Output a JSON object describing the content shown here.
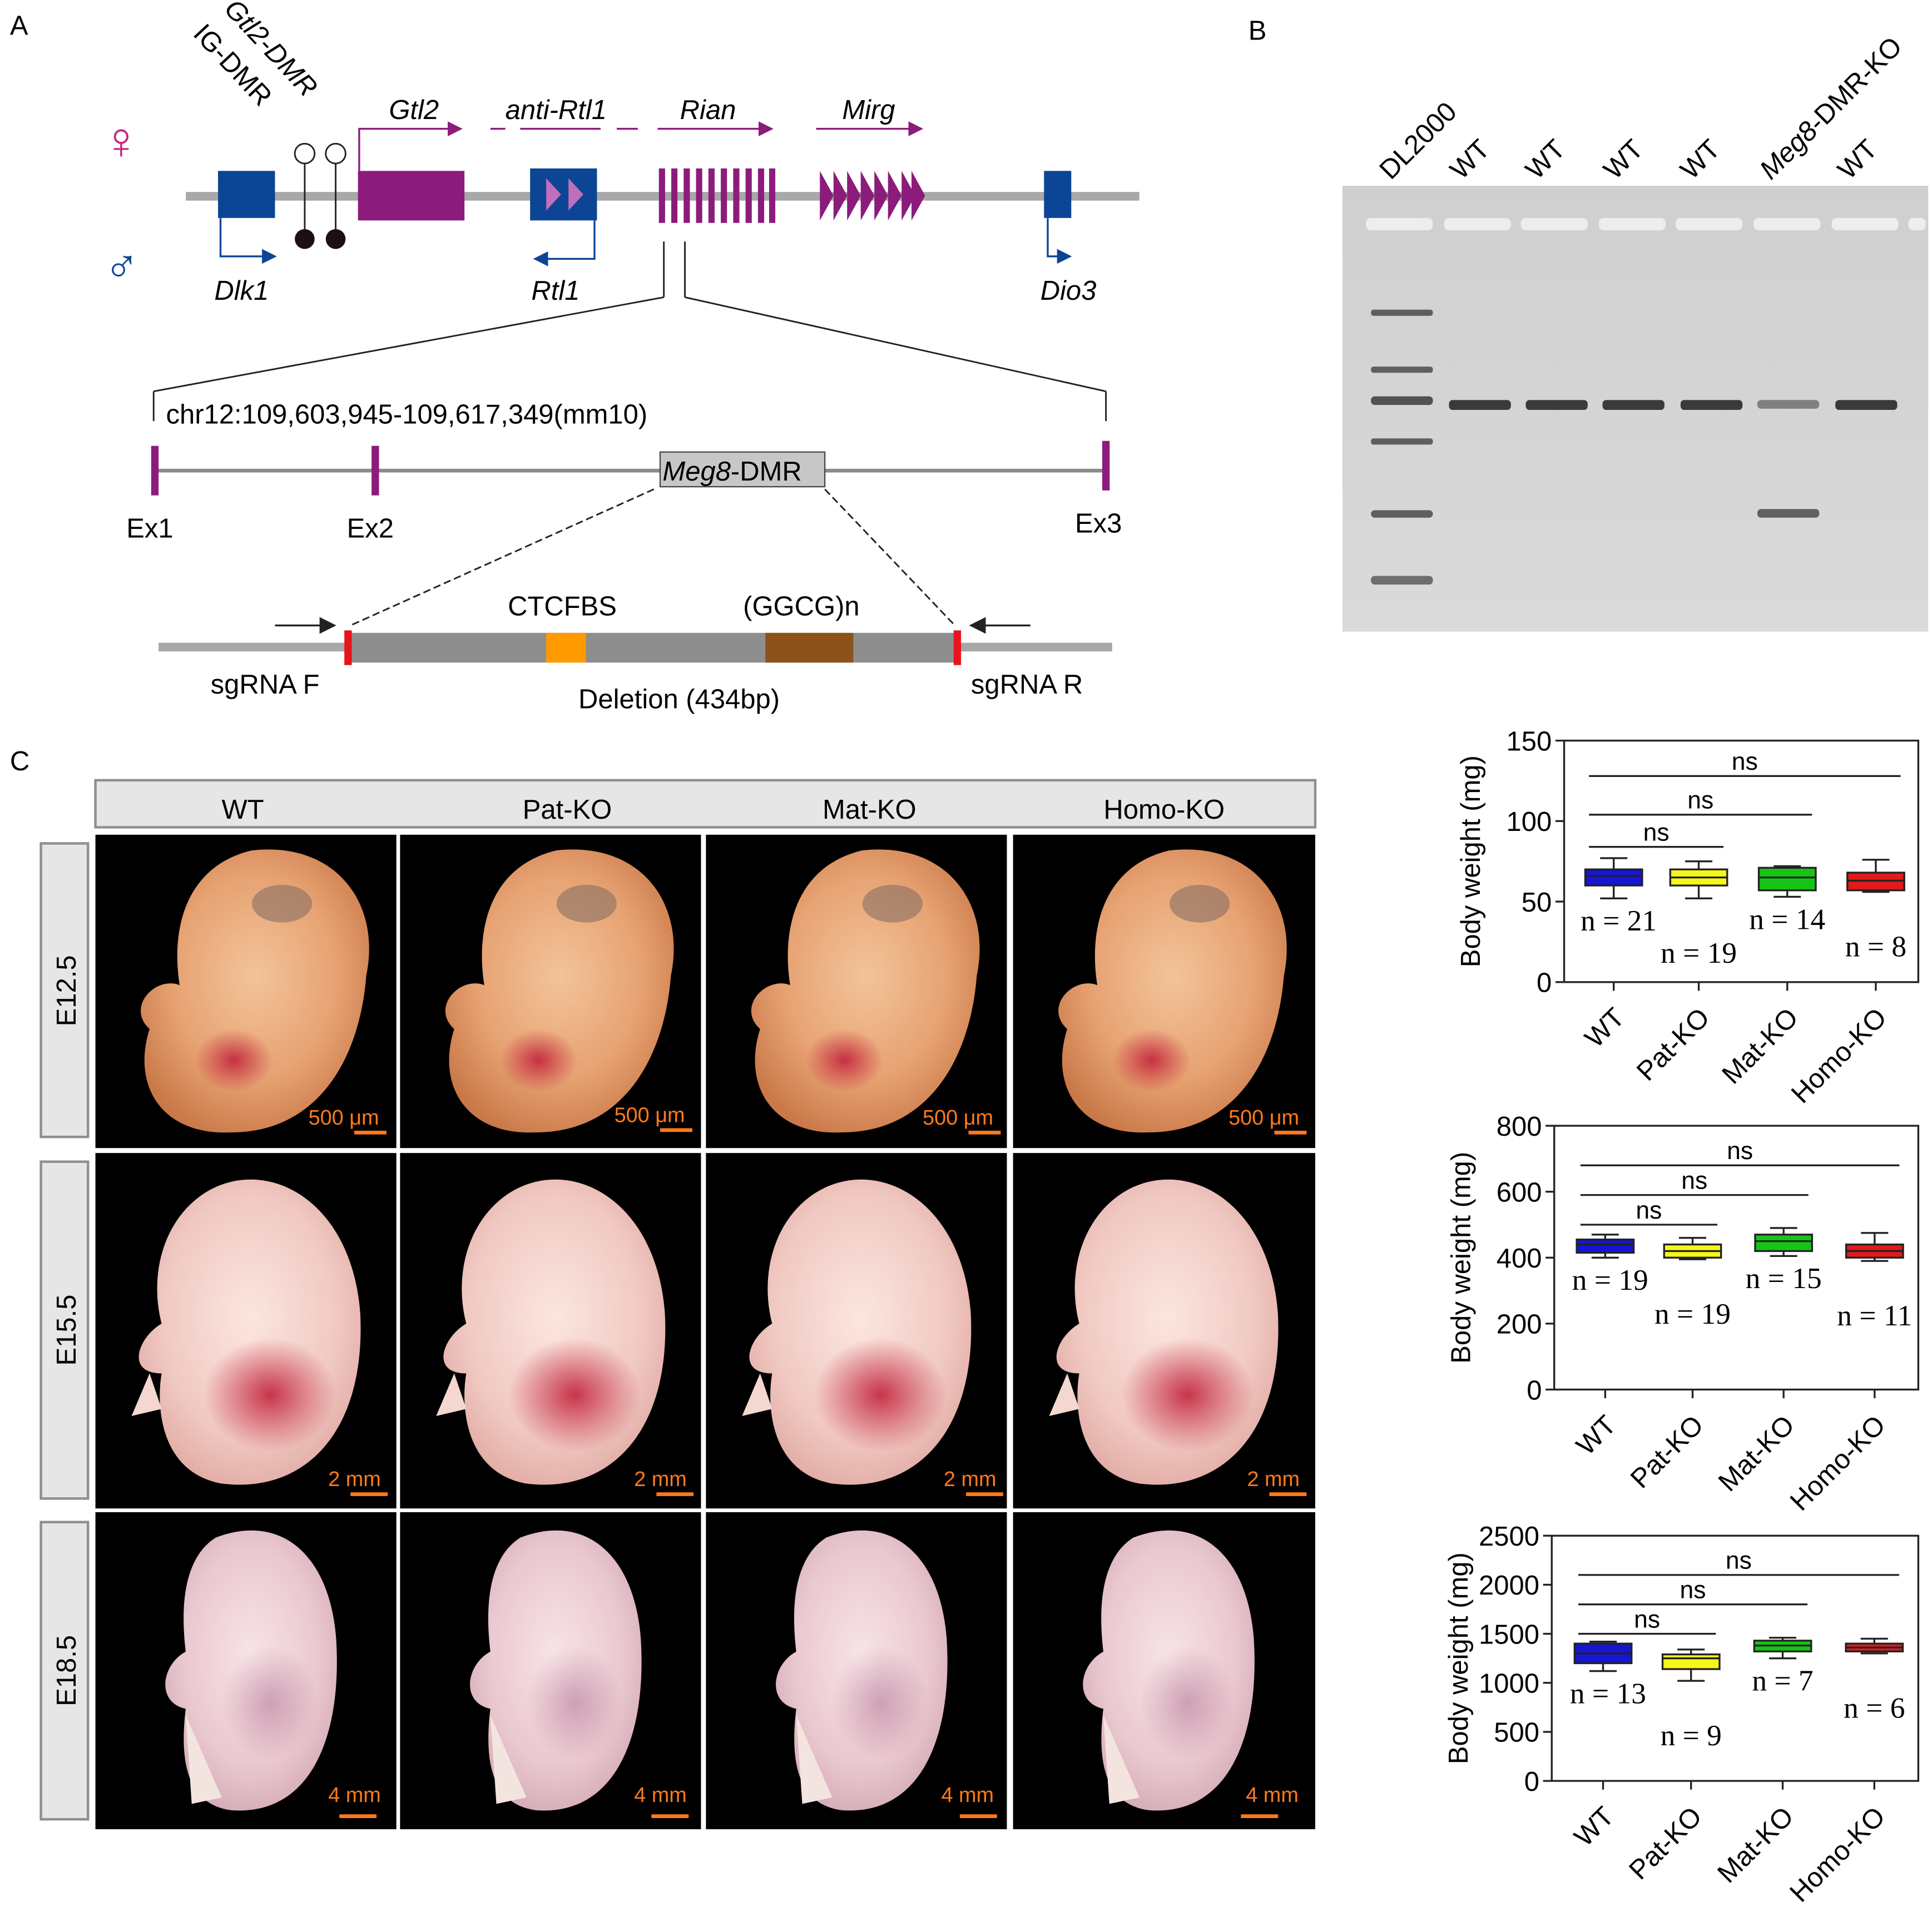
{
  "panels": {
    "A": {
      "label": "A",
      "female_symbol": "♀",
      "male_symbol": "♂",
      "dmr1": "IG-DMR",
      "dmr2": "Gtl2-DMR",
      "genes_top": [
        "Gtl2",
        "anti-Rtl1",
        "Rian",
        "Mirg"
      ],
      "genes_bottom": [
        "Dlk1",
        "Rtl1",
        "Dio3"
      ],
      "locus": "chr12:109,603,945-109,617,349(mm10)",
      "dmr_box": {
        "italic": "Meg8",
        "rest": "-DMR"
      },
      "exons": [
        "Ex1",
        "Ex2",
        "Ex3"
      ],
      "ctcf": "CTCFBS",
      "ggcg": "(GGCG)n",
      "sgrna_f": "sgRNA F",
      "sgrna_r": "sgRNA R",
      "deletion": "Deletion (434bp)",
      "colors": {
        "blue": "#0d4595",
        "purple": "#8b1c7b",
        "ctcf": "#ff9a00",
        "ggcg": "#8b531a",
        "red": "#e8141b"
      }
    },
    "B": {
      "label": "B",
      "lanes": [
        {
          "text": "DL2000",
          "italic": ""
        },
        {
          "text": "WT",
          "italic": ""
        },
        {
          "text": "WT",
          "italic": ""
        },
        {
          "text": "WT",
          "italic": ""
        },
        {
          "text": "WT",
          "italic": ""
        },
        {
          "text": "-DMR-KO",
          "italic": "Meg8"
        },
        {
          "text": "WT",
          "italic": ""
        }
      ]
    },
    "C": {
      "label": "C",
      "columns": [
        "WT",
        "Pat-KO",
        "Mat-KO",
        "Homo-KO"
      ],
      "rows": [
        {
          "stage": "E12.5",
          "scale": "500 μm"
        },
        {
          "stage": "E15.5",
          "scale": "2 mm"
        },
        {
          "stage": "E18.5",
          "scale": "4 mm"
        }
      ]
    }
  },
  "chart_data": [
    {
      "type": "box",
      "title": "E12.5",
      "ylabel": "Body weight (mg)",
      "ylim": [
        0,
        150
      ],
      "yticks": [
        "0",
        "50",
        "100",
        "150"
      ],
      "categories": [
        "WT",
        "Pat-KO",
        "Mat-KO",
        "Homo-KO"
      ],
      "colors": [
        "#1515d6",
        "#f6f61a",
        "#16c416",
        "#e21a1a"
      ],
      "boxes": [
        {
          "min": 52,
          "q1": 60,
          "median": 66,
          "q3": 70,
          "max": 77
        },
        {
          "min": 52,
          "q1": 60,
          "median": 65,
          "q3": 70,
          "max": 75
        },
        {
          "min": 53,
          "q1": 57,
          "median": 65,
          "q3": 71,
          "max": 72
        },
        {
          "min": 56,
          "q1": 57,
          "median": 63,
          "q3": 68,
          "max": 76
        }
      ],
      "n_labels": [
        "n = 21",
        "n = 19",
        "n = 14",
        "n = 8"
      ],
      "comparisons": [
        {
          "from": 0,
          "to": 1,
          "label": "ns",
          "y": 84
        },
        {
          "from": 0,
          "to": 2,
          "label": "ns",
          "y": 104
        },
        {
          "from": 0,
          "to": 3,
          "label": "ns",
          "y": 128
        }
      ]
    },
    {
      "type": "box",
      "title": "E15.5",
      "ylabel": "Body weight (mg)",
      "ylim": [
        0,
        800
      ],
      "yticks": [
        "0",
        "200",
        "400",
        "600",
        "800"
      ],
      "categories": [
        "WT",
        "Pat-KO",
        "Mat-KO",
        "Homo-KO"
      ],
      "colors": [
        "#1515d6",
        "#f6f61a",
        "#16c416",
        "#e21a1a"
      ],
      "boxes": [
        {
          "min": 400,
          "q1": 415,
          "median": 440,
          "q3": 455,
          "max": 470
        },
        {
          "min": 395,
          "q1": 400,
          "median": 420,
          "q3": 440,
          "max": 460
        },
        {
          "min": 405,
          "q1": 420,
          "median": 450,
          "q3": 470,
          "max": 490
        },
        {
          "min": 390,
          "q1": 400,
          "median": 420,
          "q3": 440,
          "max": 475
        }
      ],
      "n_labels": [
        "n = 19",
        "n = 19",
        "n = 15",
        "n = 11"
      ],
      "comparisons": [
        {
          "from": 0,
          "to": 1,
          "label": "ns",
          "y": 500
        },
        {
          "from": 0,
          "to": 2,
          "label": "ns",
          "y": 590
        },
        {
          "from": 0,
          "to": 3,
          "label": "ns",
          "y": 680
        }
      ]
    },
    {
      "type": "box",
      "title": "E18.5",
      "ylabel": "Body weight (mg)",
      "ylim": [
        0,
        2500
      ],
      "yticks": [
        "0",
        "500",
        "1000",
        "1500",
        "2000",
        "2500"
      ],
      "categories": [
        "WT",
        "Pat-KO",
        "Mat-KO",
        "Homo-KO"
      ],
      "colors": [
        "#1515d6",
        "#f6f61a",
        "#16c416",
        "#e21a1a"
      ],
      "boxes": [
        {
          "min": 1120,
          "q1": 1200,
          "median": 1300,
          "q3": 1400,
          "max": 1420
        },
        {
          "min": 1020,
          "q1": 1140,
          "median": 1250,
          "q3": 1290,
          "max": 1340
        },
        {
          "min": 1250,
          "q1": 1320,
          "median": 1380,
          "q3": 1430,
          "max": 1460
        },
        {
          "min": 1300,
          "q1": 1320,
          "median": 1360,
          "q3": 1400,
          "max": 1450
        }
      ],
      "n_labels": [
        "n = 13",
        "n = 9",
        "n = 7",
        "n = 6"
      ],
      "comparisons": [
        {
          "from": 0,
          "to": 1,
          "label": "ns",
          "y": 1500
        },
        {
          "from": 0,
          "to": 2,
          "label": "ns",
          "y": 1800
        },
        {
          "from": 0,
          "to": 3,
          "label": "ns",
          "y": 2100
        }
      ]
    }
  ]
}
